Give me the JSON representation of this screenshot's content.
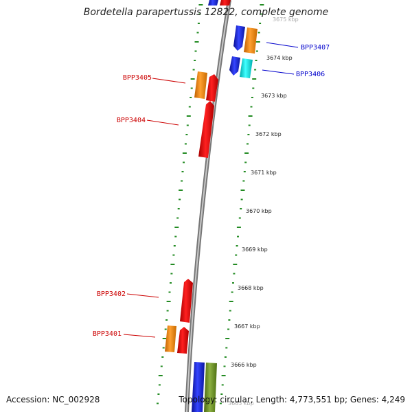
{
  "title": "Bordetella parapertussis 12822, complete genome",
  "footer": {
    "accession": "Accession: NC_002928",
    "topology": "Topology: circular; Length: 4,773,551 bp; Genes: 4,249"
  },
  "scale": {
    "ticks": [
      "3675 kbp",
      "3674 kbp",
      "3673 kbp",
      "3672 kbp",
      "3671 kbp",
      "3670 kbp",
      "3669 kbp",
      "3668 kbp",
      "3667 kbp",
      "3666 kbp",
      "3665 kbp"
    ]
  },
  "colors": {
    "red": "#ee0000",
    "orange": "#f08a10",
    "blue": "#1a2be8",
    "cyan": "#00e8e8",
    "olive": "#6b8e23",
    "backbone": "#8a8a8a",
    "dots": "#228b22",
    "label_red": "#cc0000",
    "label_blue": "#0000cc"
  },
  "labels": {
    "left": [
      "BPP3405",
      "BPP3404",
      "BPP3402",
      "BPP3401"
    ],
    "right": [
      "BPP3407",
      "BPP3406"
    ]
  }
}
